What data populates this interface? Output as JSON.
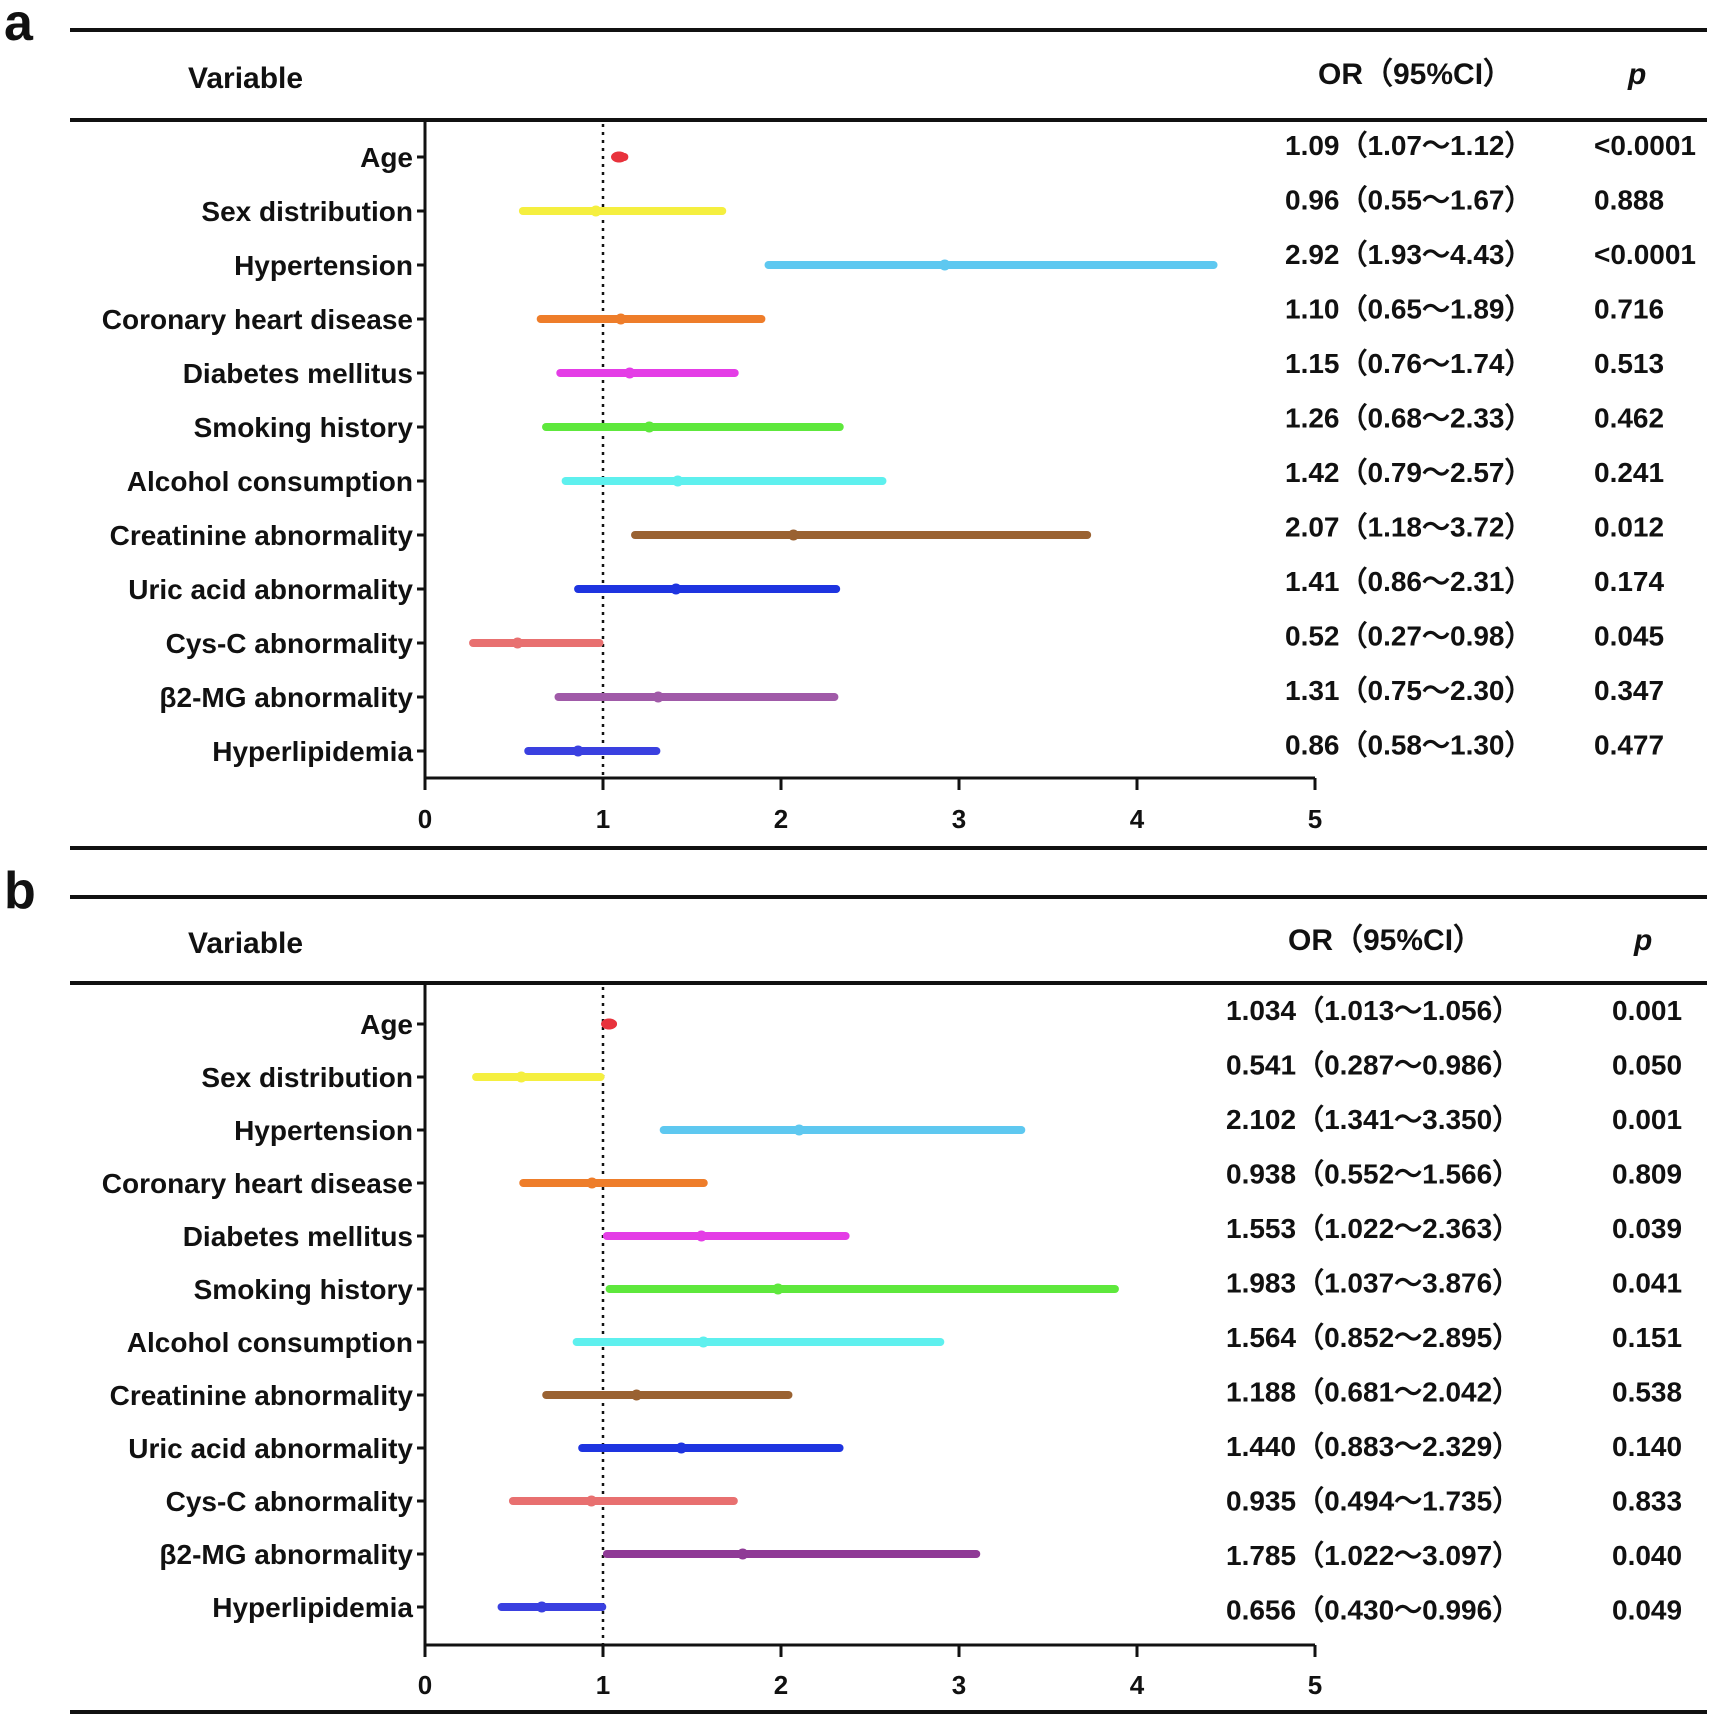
{
  "chart_data": [
    {
      "type": "forest",
      "panel": "a",
      "headers": {
        "variable": "Variable",
        "or": "OR（95%CI）",
        "p": "p"
      },
      "xlim": [
        0,
        5
      ],
      "ticks": [
        "0",
        "1",
        "2",
        "3",
        "4",
        "5"
      ],
      "reference_line": 1,
      "rows": [
        {
          "label": "Age",
          "or": 1.09,
          "lo": 1.07,
          "hi": 1.12,
          "or_text": "1.09（1.07～1.12）",
          "p": "<0.0001",
          "color": "#e8323c"
        },
        {
          "label": "Sex distribution",
          "or": 0.96,
          "lo": 0.55,
          "hi": 1.67,
          "or_text": "0.96（0.55～1.67）",
          "p": "0.888",
          "color": "#f5ef3f"
        },
        {
          "label": "Hypertension",
          "or": 2.92,
          "lo": 1.93,
          "hi": 4.43,
          "or_text": "2.92（1.93～4.43）",
          "p": "<0.0001",
          "color": "#5ec8f0"
        },
        {
          "label": "Coronary heart disease",
          "or": 1.1,
          "lo": 0.65,
          "hi": 1.89,
          "or_text": "1.10（0.65～1.89）",
          "p": "0.716",
          "color": "#ee7d2a"
        },
        {
          "label": "Diabetes mellitus",
          "or": 1.15,
          "lo": 0.76,
          "hi": 1.74,
          "or_text": "1.15（0.76～1.74）",
          "p": "0.513",
          "color": "#e43de6"
        },
        {
          "label": "Smoking history",
          "or": 1.26,
          "lo": 0.68,
          "hi": 2.33,
          "or_text": "1.26（0.68～2.33）",
          "p": "0.462",
          "color": "#5ee83c"
        },
        {
          "label": "Alcohol consumption",
          "or": 1.42,
          "lo": 0.79,
          "hi": 2.57,
          "or_text": "1.42（0.79～2.57）",
          "p": "0.241",
          "color": "#5ef0ee"
        },
        {
          "label": "Creatinine abnormality",
          "or": 2.07,
          "lo": 1.18,
          "hi": 3.72,
          "or_text": "2.07（1.18～3.72）",
          "p": "0.012",
          "color": "#9a6232"
        },
        {
          "label": "Uric acid abnormality",
          "or": 1.41,
          "lo": 0.86,
          "hi": 2.31,
          "or_text": "1.41（0.86～2.31）",
          "p": "0.174",
          "color": "#1e34e0"
        },
        {
          "label": "Cys-C abnormality",
          "or": 0.52,
          "lo": 0.27,
          "hi": 0.98,
          "or_text": "0.52（0.27～0.98）",
          "p": "0.045",
          "color": "#e87070"
        },
        {
          "label": "β2-MG abnormality",
          "or": 1.31,
          "lo": 0.75,
          "hi": 2.3,
          "or_text": "1.31（0.75～2.30）",
          "p": "0.347",
          "color": "#a05aa8"
        },
        {
          "label": "Hyperlipidemia",
          "or": 0.86,
          "lo": 0.58,
          "hi": 1.3,
          "or_text": "0.86（0.58～1.30）",
          "p": "0.477",
          "color": "#3a40e0"
        }
      ]
    },
    {
      "type": "forest",
      "panel": "b",
      "headers": {
        "variable": "Variable",
        "or": "OR（95%CI）",
        "p": "p"
      },
      "xlim": [
        0,
        5
      ],
      "ticks": [
        "0",
        "1",
        "2",
        "3",
        "4",
        "5"
      ],
      "reference_line": 1,
      "rows": [
        {
          "label": "Age",
          "or": 1.034,
          "lo": 1.013,
          "hi": 1.056,
          "or_text": "1.034（1.013～1.056）",
          "p": "0.001",
          "color": "#e8323c"
        },
        {
          "label": "Sex distribution",
          "or": 0.541,
          "lo": 0.287,
          "hi": 0.986,
          "or_text": "0.541（0.287～0.986）",
          "p": "0.050",
          "color": "#f5ef3f"
        },
        {
          "label": "Hypertension",
          "or": 2.102,
          "lo": 1.341,
          "hi": 3.35,
          "or_text": "2.102（1.341～3.350）",
          "p": "0.001",
          "color": "#5ec8f0"
        },
        {
          "label": "Coronary heart disease",
          "or": 0.938,
          "lo": 0.552,
          "hi": 1.566,
          "or_text": "0.938（0.552～1.566）",
          "p": "0.809",
          "color": "#ee7d2a"
        },
        {
          "label": "Diabetes mellitus",
          "or": 1.553,
          "lo": 1.022,
          "hi": 2.363,
          "or_text": "1.553（1.022～2.363）",
          "p": "0.039",
          "color": "#e43de6"
        },
        {
          "label": "Smoking history",
          "or": 1.983,
          "lo": 1.037,
          "hi": 3.876,
          "or_text": "1.983（1.037～3.876）",
          "p": "0.041",
          "color": "#5ee83c"
        },
        {
          "label": "Alcohol consumption",
          "or": 1.564,
          "lo": 0.852,
          "hi": 2.895,
          "or_text": "1.564（0.852～2.895）",
          "p": "0.151",
          "color": "#5ef0ee"
        },
        {
          "label": "Creatinine abnormality",
          "or": 1.188,
          "lo": 0.681,
          "hi": 2.042,
          "or_text": "1.188（0.681～2.042）",
          "p": "0.538",
          "color": "#9a6232"
        },
        {
          "label": "Uric acid abnormality",
          "or": 1.44,
          "lo": 0.883,
          "hi": 2.329,
          "or_text": "1.440（0.883～2.329）",
          "p": "0.140",
          "color": "#1e34e0"
        },
        {
          "label": "Cys-C abnormality",
          "or": 0.935,
          "lo": 0.494,
          "hi": 1.735,
          "or_text": "0.935（0.494～1.735）",
          "p": "0.833",
          "color": "#e87070"
        },
        {
          "label": "β2-MG abnormality",
          "or": 1.785,
          "lo": 1.022,
          "hi": 3.097,
          "or_text": "1.785（1.022～3.097）",
          "p": "0.040",
          "color": "#8f3a96"
        },
        {
          "label": "Hyperlipidemia",
          "or": 0.656,
          "lo": 0.43,
          "hi": 0.996,
          "or_text": "0.656（0.430～0.996）",
          "p": "0.049",
          "color": "#3a40e0"
        }
      ]
    }
  ]
}
